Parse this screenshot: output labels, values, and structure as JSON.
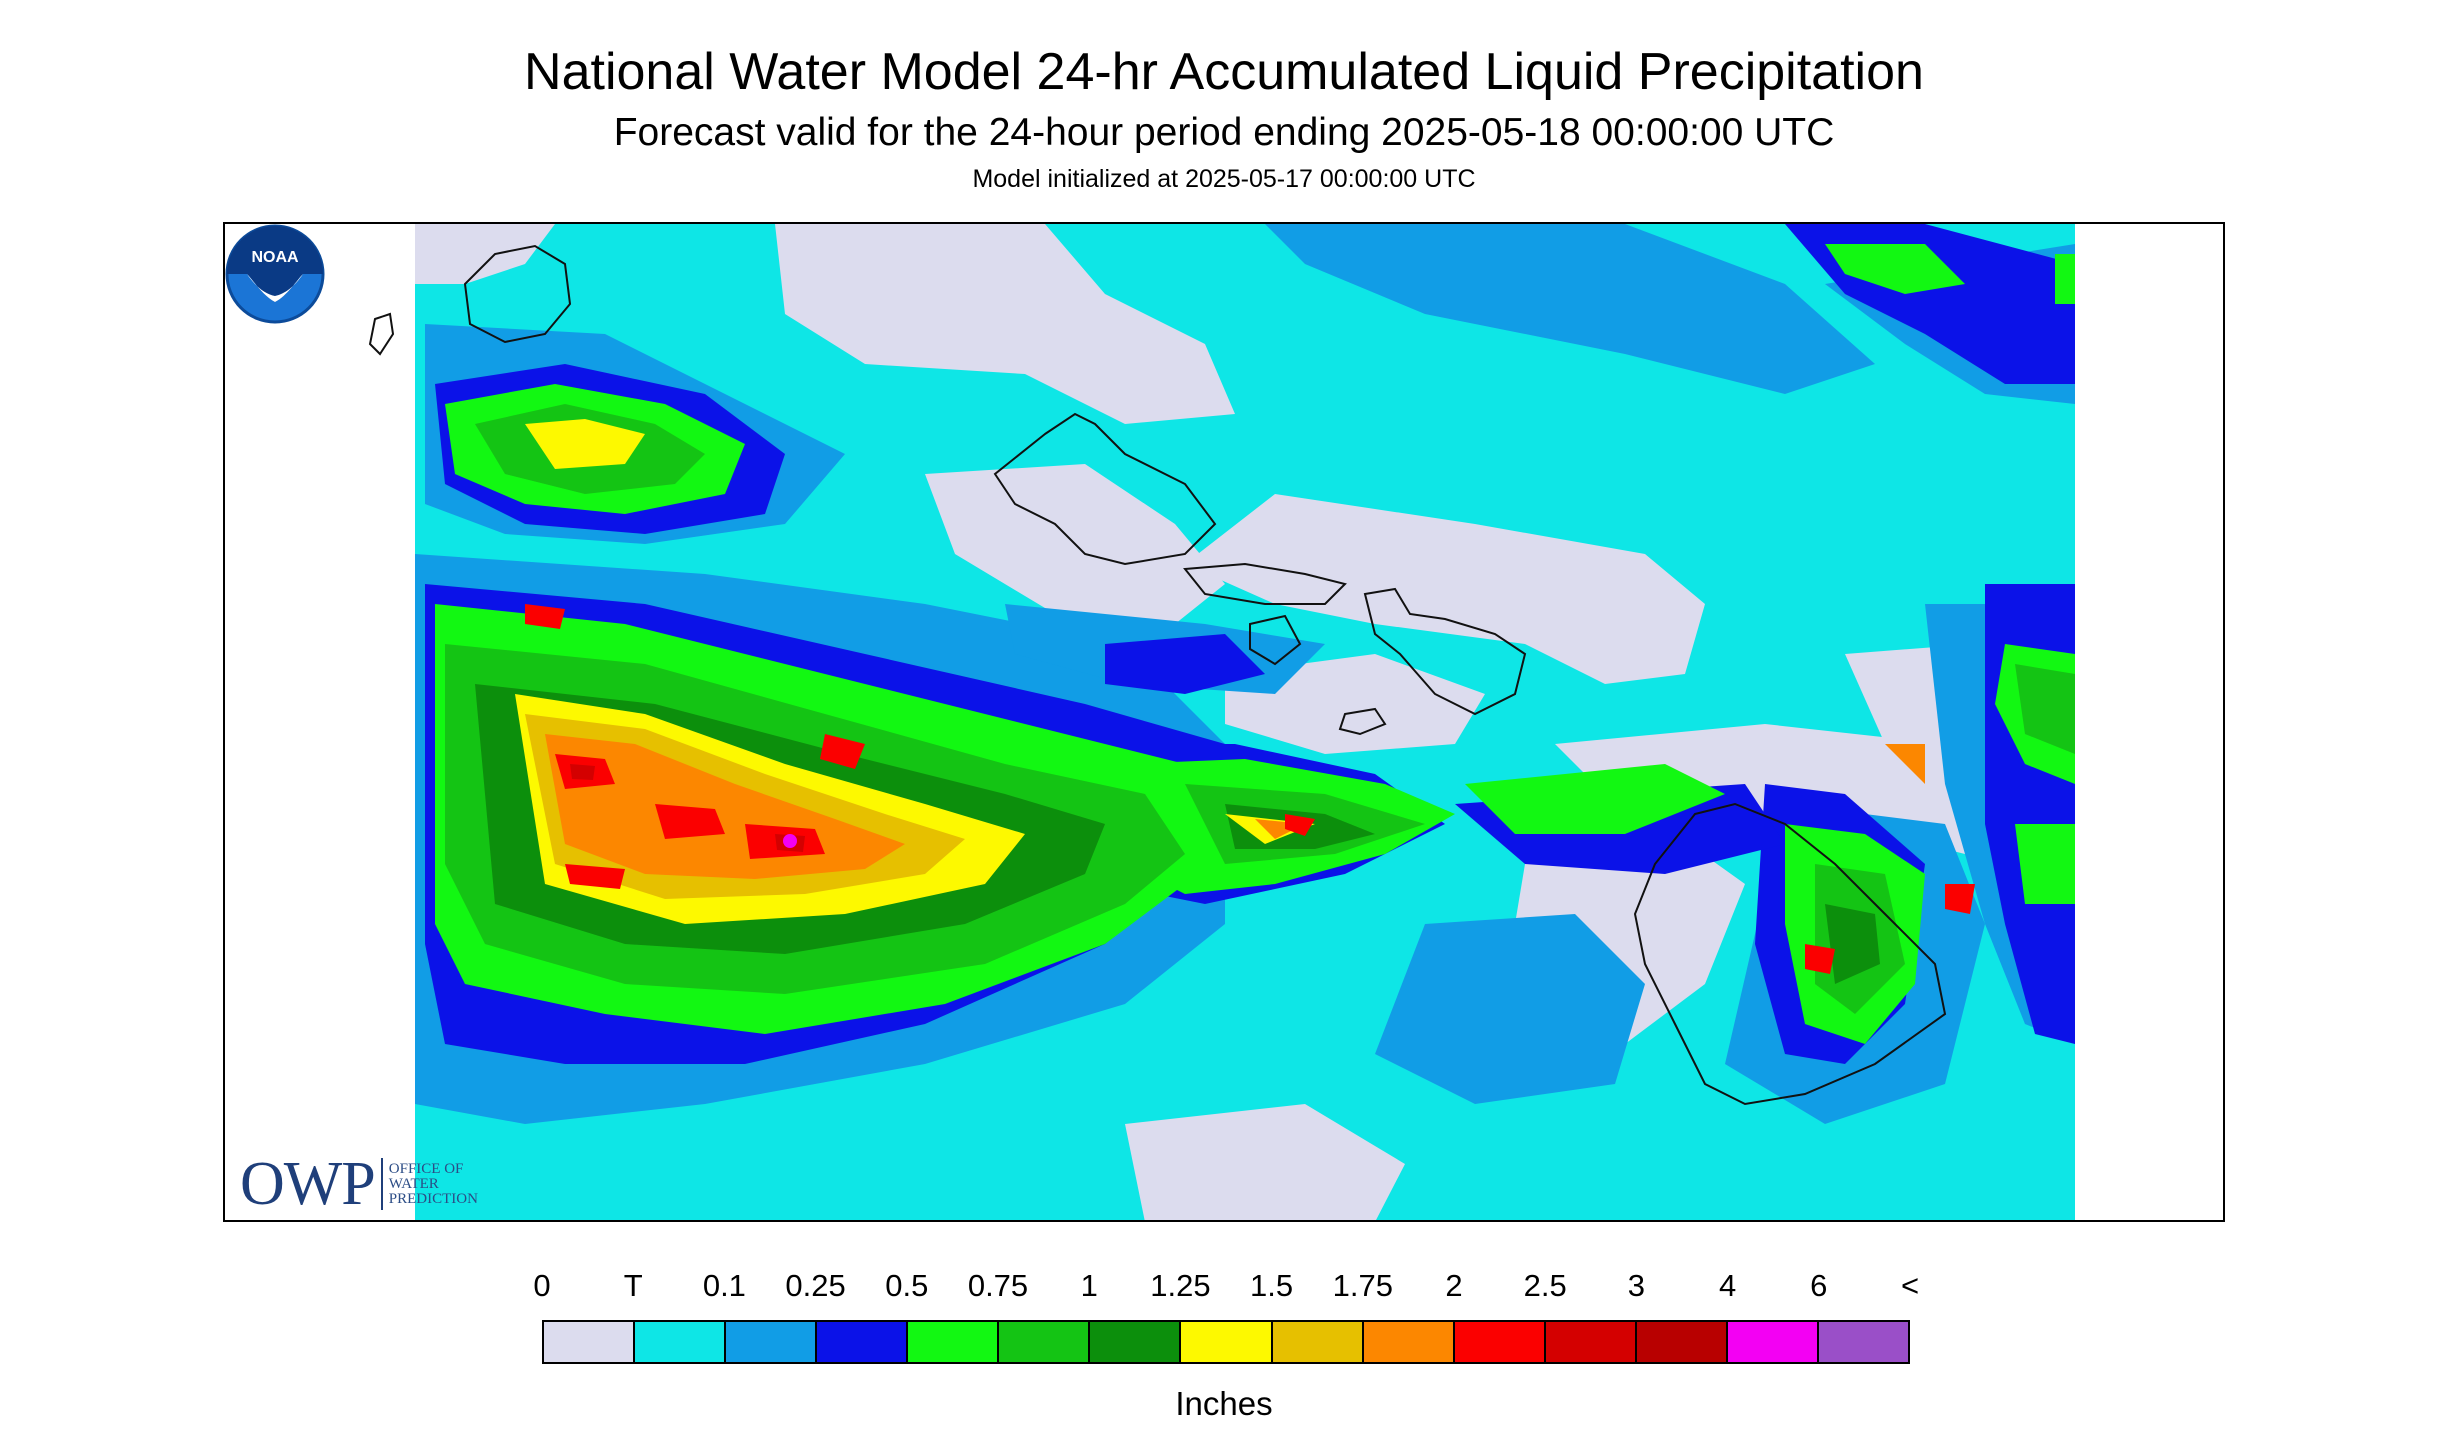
{
  "header": {
    "title": "National Water Model 24-hr Accumulated Liquid Precipitation",
    "subtitle": "Forecast valid for the 24-hour period ending 2025-05-18 00:00:00 UTC",
    "init": "Model initialized at 2025-05-17 00:00:00 UTC"
  },
  "map": {
    "region": "Hawaiian Islands",
    "features": [
      "Kauai",
      "Niihau",
      "Oahu",
      "Molokai",
      "Lanai",
      "Maui",
      "Kahoolawe",
      "Hawaii"
    ]
  },
  "logos": {
    "owp_letters": "OWP",
    "owp_line1": "OFFICE OF",
    "owp_line2": "WATER",
    "owp_line3": "PREDICTION",
    "noaa_text": "NOAA"
  },
  "legend": {
    "labels": [
      "0",
      "T",
      "0.1",
      "0.25",
      "0.5",
      "0.75",
      "1",
      "1.25",
      "1.5",
      "1.75",
      "2",
      "2.5",
      "3",
      "4",
      "6",
      "<"
    ],
    "colors": [
      "#dcdcee",
      "#0ee6e6",
      "#119de6",
      "#0b12e8",
      "#12f812",
      "#14c414",
      "#0c8f0c",
      "#fdf900",
      "#e6c000",
      "#fc8700",
      "#fb0000",
      "#d40000",
      "#b80000",
      "#f300f3",
      "#9a4fc8"
    ],
    "units": "Inches"
  }
}
